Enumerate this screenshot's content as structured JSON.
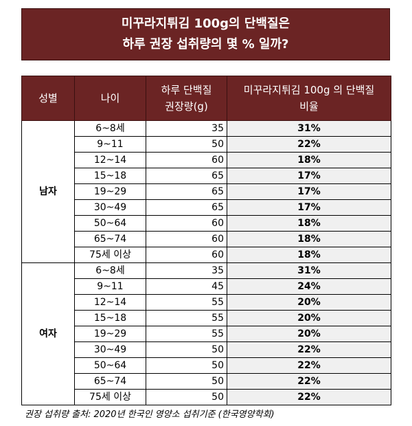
{
  "title": {
    "line1": "미꾸라지튀김 100g의 단백질은",
    "line2": "하루 권장 섭취량의 몇 % 일까?"
  },
  "table": {
    "headers": {
      "gender": "성별",
      "age": "나이",
      "rec_line1": "하루 단백질",
      "rec_line2": "권장량(g)",
      "ratio_line1": "미꾸라지튀김 100g 의 단백질",
      "ratio_line2": "비율"
    },
    "groups": [
      {
        "gender": "남자",
        "rows": [
          {
            "age": "6~8세",
            "rec": "35",
            "ratio": "31%"
          },
          {
            "age": "9~11",
            "rec": "50",
            "ratio": "22%"
          },
          {
            "age": "12~14",
            "rec": "60",
            "ratio": "18%"
          },
          {
            "age": "15~18",
            "rec": "65",
            "ratio": "17%"
          },
          {
            "age": "19~29",
            "rec": "65",
            "ratio": "17%"
          },
          {
            "age": "30~49",
            "rec": "65",
            "ratio": "17%"
          },
          {
            "age": "50~64",
            "rec": "60",
            "ratio": "18%"
          },
          {
            "age": "65~74",
            "rec": "60",
            "ratio": "18%"
          },
          {
            "age": "75세 이상",
            "rec": "60",
            "ratio": "18%"
          }
        ]
      },
      {
        "gender": "여자",
        "rows": [
          {
            "age": "6~8세",
            "rec": "35",
            "ratio": "31%"
          },
          {
            "age": "9~11",
            "rec": "45",
            "ratio": "24%"
          },
          {
            "age": "12~14",
            "rec": "55",
            "ratio": "20%"
          },
          {
            "age": "15~18",
            "rec": "55",
            "ratio": "20%"
          },
          {
            "age": "19~29",
            "rec": "55",
            "ratio": "20%"
          },
          {
            "age": "30~49",
            "rec": "50",
            "ratio": "22%"
          },
          {
            "age": "50~64",
            "rec": "50",
            "ratio": "22%"
          },
          {
            "age": "65~74",
            "rec": "50",
            "ratio": "22%"
          },
          {
            "age": "75세 이상",
            "rec": "50",
            "ratio": "22%"
          }
        ]
      }
    ]
  },
  "source": "권장 섭취량 출처: 2020년 한국인 영양소 섭취기준 (한국영양학회)"
}
